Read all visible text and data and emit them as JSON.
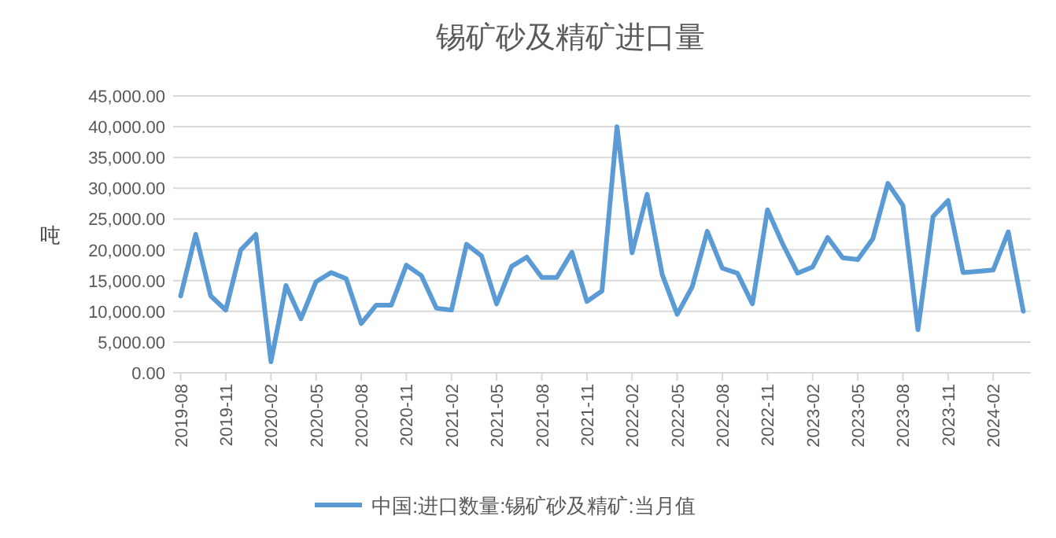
{
  "chart_data": {
    "type": "line",
    "title": "锡矿砂及精矿进口量",
    "ylabel": "吨",
    "categories": [
      "2019-08",
      null,
      null,
      "2019-11",
      null,
      null,
      "2020-02",
      null,
      null,
      "2020-05",
      null,
      null,
      "2020-08",
      null,
      null,
      "2020-11",
      null,
      null,
      "2021-02",
      null,
      null,
      "2021-05",
      null,
      null,
      "2021-08",
      null,
      null,
      "2021-11",
      null,
      null,
      "2022-02",
      null,
      null,
      "2022-05",
      null,
      null,
      "2022-08",
      null,
      null,
      "2022-11",
      null,
      null,
      "2023-02",
      null,
      null,
      "2023-05",
      null,
      null,
      "2023-08",
      null,
      null,
      "2023-11",
      null,
      null,
      "2024-02",
      null,
      null
    ],
    "series": [
      {
        "name": "中国:进口数量:锡矿砂及精矿:当月值",
        "color": "#5b9bd5",
        "values": [
          12500,
          22500,
          12500,
          10200,
          20000,
          22500,
          1800,
          14200,
          8800,
          14800,
          16300,
          15300,
          8000,
          11000,
          11000,
          17500,
          15800,
          10500,
          10200,
          20900,
          19000,
          11200,
          17300,
          18800,
          15500,
          15500,
          19600,
          11600,
          13300,
          40000,
          19500,
          29000,
          16000,
          9500,
          14000,
          23000,
          17000,
          16200,
          11200,
          26500,
          21000,
          16200,
          17200,
          22000,
          18700,
          18400,
          21800,
          30800,
          27200,
          7000,
          25400,
          28000,
          16300,
          16500,
          16700,
          22900,
          10000
        ]
      }
    ],
    "ylim": [
      0,
      45000
    ],
    "yticks": [
      {
        "value": 0,
        "label": "0.00"
      },
      {
        "value": 5000,
        "label": "5,000.00"
      },
      {
        "value": 10000,
        "label": "10,000.00"
      },
      {
        "value": 15000,
        "label": "15,000.00"
      },
      {
        "value": 20000,
        "label": "20,000.00"
      },
      {
        "value": 25000,
        "label": "25,000.00"
      },
      {
        "value": 30000,
        "label": "30,000.00"
      },
      {
        "value": 35000,
        "label": "35,000.00"
      },
      {
        "value": 40000,
        "label": "40,000.00"
      },
      {
        "value": 45000,
        "label": "45,000.00"
      }
    ],
    "grid": "y",
    "legend": "bottom",
    "marker": "none",
    "line_style": "solid"
  }
}
